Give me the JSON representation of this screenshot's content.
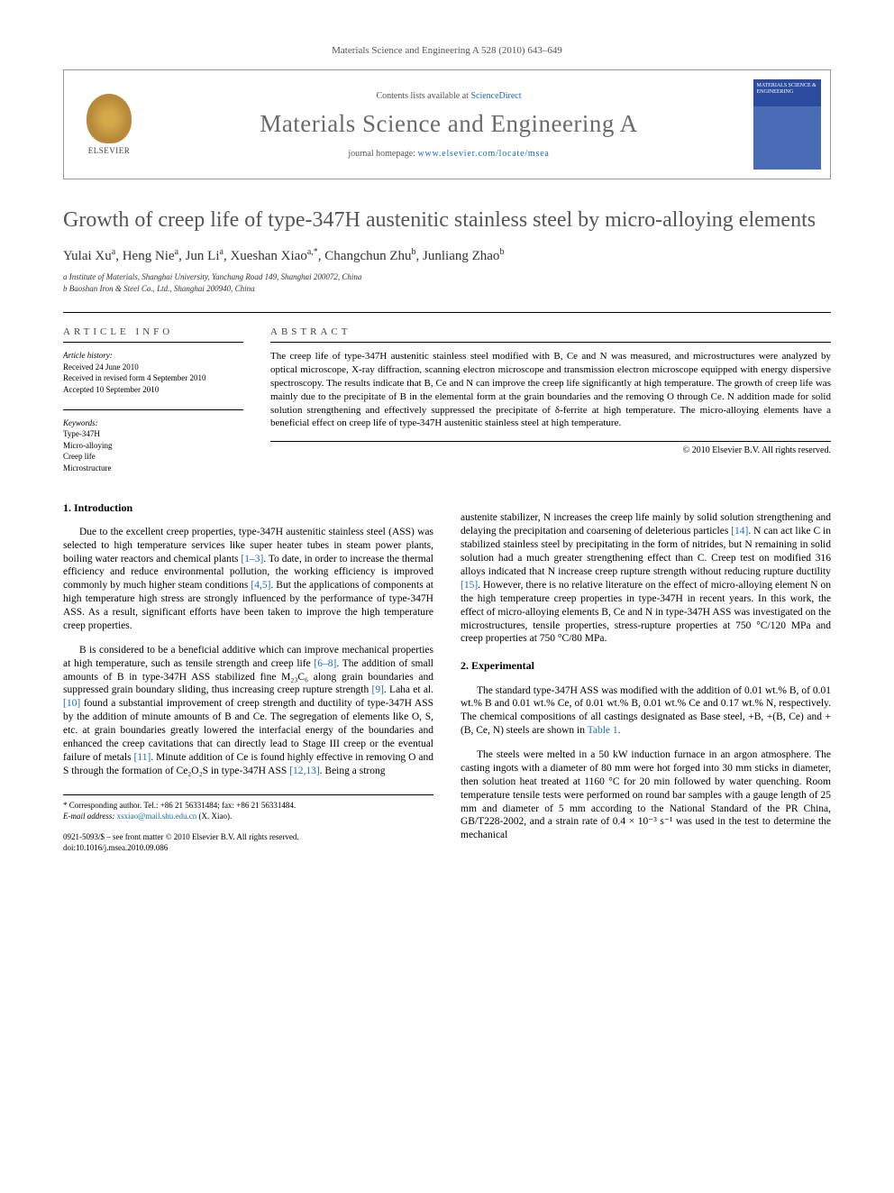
{
  "journal_header": "Materials Science and Engineering A 528 (2010) 643–649",
  "header": {
    "contents_pre": "Contents lists available at ",
    "contents_link": "ScienceDirect",
    "journal_name": "Materials Science and Engineering A",
    "homepage_pre": "journal homepage: ",
    "homepage_url": "www.elsevier.com/locate/msea",
    "elsevier_label": "ELSEVIER",
    "cover_title": "MATERIALS SCIENCE & ENGINEERING"
  },
  "title": "Growth of creep life of type-347H austenitic stainless steel by micro-alloying elements",
  "authors_html": "Yulai Xu<sup>a</sup>, Heng Nie<sup>a</sup>, Jun Li<sup>a</sup>, Xueshan Xiao<sup>a,*</sup>, Changchun Zhu<sup>b</sup>, Junliang Zhao<sup>b</sup>",
  "affiliations": {
    "a": "a Institute of Materials, Shanghai University, Yanchang Road 149, Shanghai 200072, China",
    "b": "b Baoshan Iron & Steel Co., Ltd., Shanghai 200940, China"
  },
  "info": {
    "heading": "ARTICLE INFO",
    "history_label": "Article history:",
    "received": "Received 24 June 2010",
    "revised": "Received in revised form 4 September 2010",
    "accepted": "Accepted 10 September 2010",
    "keywords_label": "Keywords:",
    "keywords": [
      "Type-347H",
      "Micro-alloying",
      "Creep life",
      "Microstructure"
    ]
  },
  "abstract": {
    "heading": "ABSTRACT",
    "text": "The creep life of type-347H austenitic stainless steel modified with B, Ce and N was measured, and microstructures were analyzed by optical microscope, X-ray diffraction, scanning electron microscope and transmission electron microscope equipped with energy dispersive spectroscopy. The results indicate that B, Ce and N can improve the creep life significantly at high temperature. The growth of creep life was mainly due to the precipitate of B in the elemental form at the grain boundaries and the removing O through Ce. N addition made for solid solution strengthening and effectively suppressed the precipitate of δ-ferrite at high temperature. The micro-alloying elements have a beneficial effect on creep life of type-347H austenitic stainless steel at high temperature.",
    "copyright": "© 2010 Elsevier B.V. All rights reserved."
  },
  "sections": {
    "intro_heading": "1.  Introduction",
    "intro_p1": "Due to the excellent creep properties, type-347H austenitic stainless steel (ASS) was selected to high temperature services like super heater tubes in steam power plants, boiling water reactors and chemical plants [1–3]. To date, in order to increase the thermal efficiency and reduce environmental pollution, the working efficiency is improved commonly by much higher steam conditions [4,5]. But the applications of components at high temperature high stress are strongly influenced by the performance of type-347H ASS. As a result, significant efforts have been taken to improve the high temperature creep properties.",
    "intro_p2": "B is considered to be a beneficial additive which can improve mechanical properties at high temperature, such as tensile strength and creep life [6–8]. The addition of small amounts of B in type-347H ASS stabilized fine M₂₃C₆ along grain boundaries and suppressed grain boundary sliding, thus increasing creep rupture strength [9]. Laha et al. [10] found a substantial improvement of creep strength and ductility of type-347H ASS by the addition of minute amounts of B and Ce. The segregation of elements like O, S, etc. at grain boundaries greatly lowered the interfacial energy of the boundaries and enhanced the creep cavitations that can directly lead to Stage III creep or the eventual failure of metals [11]. Minute addition of Ce is found highly effective in removing O and S through the formation of Ce₂O₂S in type-347H ASS [12,13]. Being a strong",
    "col2_p1": "austenite stabilizer, N increases the creep life mainly by solid solution strengthening and delaying the precipitation and coarsening of deleterious particles [14]. N can act like C in stabilized stainless steel by precipitating in the form of nitrides, but N remaining in solid solution had a much greater strengthening effect than C. Creep test on modified 316 alloys indicated that N increase creep rupture strength without reducing rupture ductility [15]. However, there is no relative literature on the effect of micro-alloying element N on the high temperature creep properties in type-347H in recent years. In this work, the effect of micro-alloying elements B, Ce and N in type-347H ASS was investigated on the microstructures, tensile properties, stress-rupture properties at 750 °C/120 MPa and creep properties at 750 °C/80 MPa.",
    "exp_heading": "2.  Experimental",
    "exp_p1": "The standard type-347H ASS was modified with the addition of 0.01 wt.% B, of 0.01 wt.% B and 0.01 wt.% Ce, of 0.01 wt.% B, 0.01 wt.% Ce and 0.17 wt.% N, respectively. The chemical compositions of all castings designated as Base steel, +B, +(B, Ce) and +(B, Ce, N) steels are shown in Table 1.",
    "exp_p2": "The steels were melted in a 50 kW induction furnace in an argon atmosphere. The casting ingots with a diameter of 80 mm were hot forged into 30 mm sticks in diameter, then solution heat treated at 1160 °C for 20 min followed by water quenching. Room temperature tensile tests were performed on round bar samples with a gauge length of 25 mm and diameter of 5 mm according to the National Standard of the PR China, GB/T228-2002, and a strain rate of 0.4 × 10⁻³ s⁻¹ was used in the test to determine the mechanical"
  },
  "footnote": {
    "corr": "* Corresponding author. Tel.: +86 21 56331484; fax: +86 21 56331484.",
    "email_label": "E-mail address: ",
    "email": "xsxiao@mail.shu.edu.cn",
    "email_suffix": " (X. Xiao)."
  },
  "bottom": {
    "line1": "0921-5093/$ – see front matter © 2010 Elsevier B.V. All rights reserved.",
    "line2": "doi:10.1016/j.msea.2010.09.086"
  }
}
